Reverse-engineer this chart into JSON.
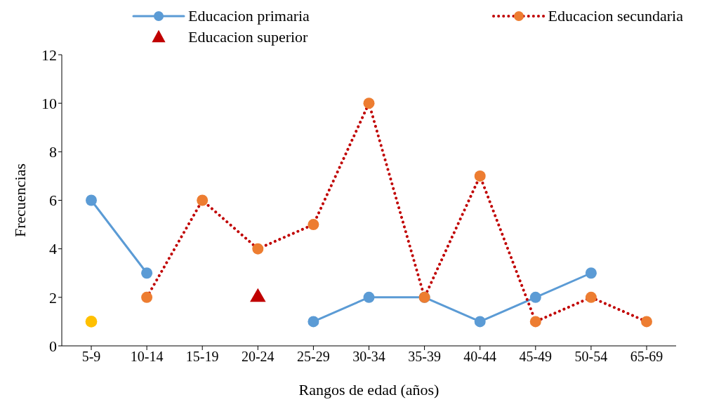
{
  "chart_data": {
    "type": "line",
    "xlabel": "Rangos de edad (años)",
    "ylabel": "Frecuencias",
    "categories": [
      "5-9",
      "10-14",
      "15-19",
      "20-24",
      "25-29",
      "30-34",
      "35-39",
      "40-44",
      "45-49",
      "50-54",
      "65-69"
    ],
    "series": [
      {
        "name": "Educacion primaria",
        "color": "#5b9bd5",
        "marker": "circle",
        "line_style": "solid",
        "values": [
          6,
          3,
          null,
          null,
          1,
          2,
          2,
          1,
          2,
          3,
          null
        ]
      },
      {
        "name": "Educacion secundaria",
        "color": "#c00000",
        "colors": [
          null,
          "#ed7d31",
          "#ed7d31",
          "#ed7d31",
          "#ed7d31",
          "#ed7d31",
          "#ed7d31",
          "#ed7d31",
          "#ed7d31",
          "#ed7d31",
          "#ed7d31"
        ],
        "marker": "circle",
        "line_style": "dotted",
        "values": [
          null,
          2,
          6,
          4,
          5,
          10,
          2,
          7,
          1,
          2,
          1
        ]
      },
      {
        "name": "Educacion superior",
        "type": "scatter",
        "color": "#c00000",
        "marker": "triangle",
        "values": [
          null,
          null,
          null,
          2,
          null,
          null,
          null,
          null,
          null,
          null,
          null
        ]
      },
      {
        "type": "scatter",
        "color": "#ffc000",
        "marker": "circle",
        "values": [
          1,
          null,
          null,
          null,
          null,
          null,
          null,
          null,
          null,
          null,
          null
        ]
      }
    ],
    "ylim": [
      0,
      12
    ],
    "yticks": [
      0,
      2,
      4,
      6,
      8,
      10,
      12
    ],
    "grid": false,
    "legend": "top"
  }
}
